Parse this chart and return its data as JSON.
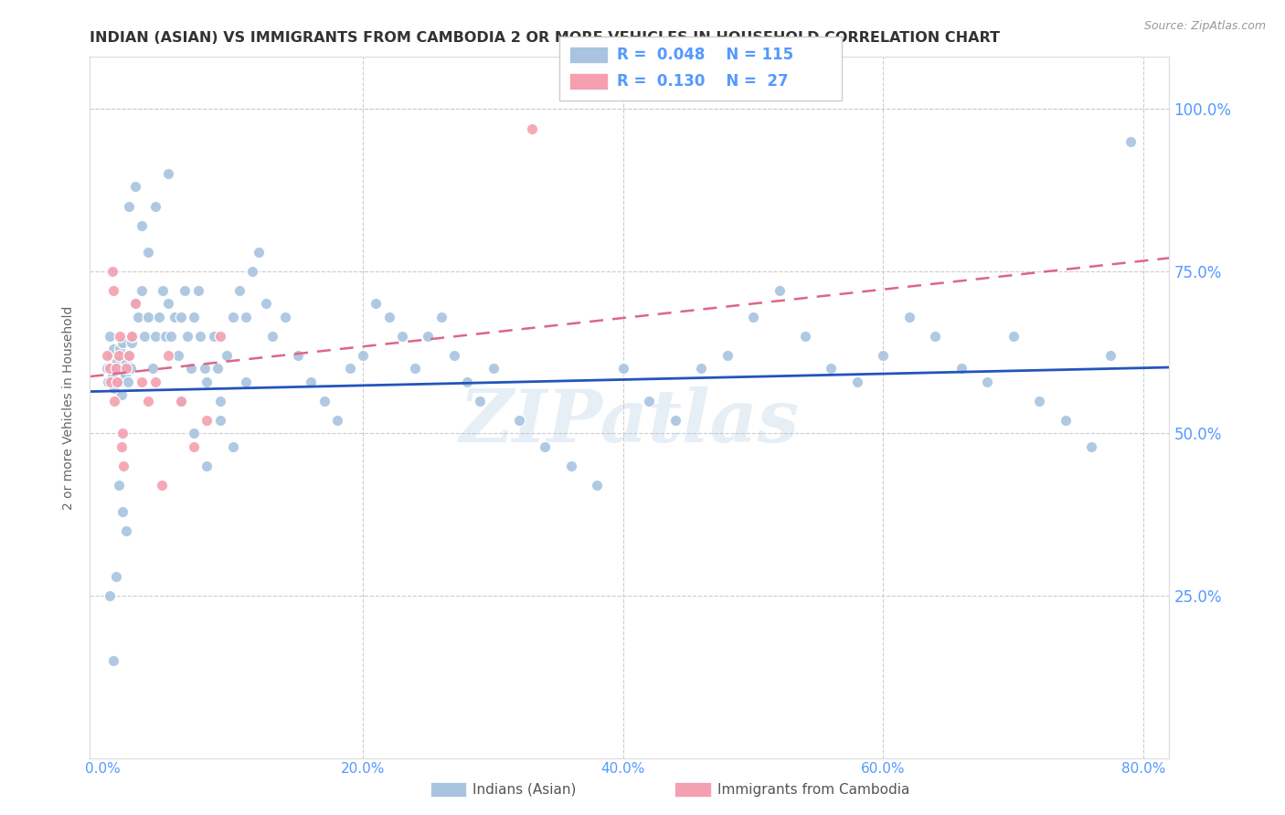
{
  "title": "INDIAN (ASIAN) VS IMMIGRANTS FROM CAMBODIA 2 OR MORE VEHICLES IN HOUSEHOLD CORRELATION CHART",
  "source": "Source: ZipAtlas.com",
  "ylabel": "2 or more Vehicles in Household",
  "xtick_labels": [
    "0.0%",
    "20.0%",
    "40.0%",
    "60.0%",
    "80.0%"
  ],
  "xtick_values": [
    0.0,
    0.2,
    0.4,
    0.6,
    0.8
  ],
  "legend_R_indian": "0.048",
  "legend_N_indian": "115",
  "legend_R_cambodia": "0.130",
  "legend_N_cambodia": "27",
  "indian_color": "#a8c4e0",
  "cambodia_color": "#f4a0b0",
  "indian_line_color": "#2255bb",
  "cambodia_line_color": "#dd6688",
  "watermark": "ZIPatlas",
  "title_color": "#333333",
  "axis_color": "#5599ff",
  "background_color": "#ffffff",
  "indian_line_intercept": 0.565,
  "indian_line_slope": 0.045,
  "cambodia_line_intercept": 0.59,
  "cambodia_line_slope": 0.22,
  "indian_x": [
    0.003,
    0.004,
    0.005,
    0.006,
    0.007,
    0.008,
    0.009,
    0.01,
    0.011,
    0.012,
    0.013,
    0.014,
    0.015,
    0.016,
    0.017,
    0.018,
    0.019,
    0.02,
    0.021,
    0.022,
    0.023,
    0.025,
    0.027,
    0.03,
    0.032,
    0.035,
    0.038,
    0.04,
    0.043,
    0.046,
    0.048,
    0.05,
    0.052,
    0.055,
    0.058,
    0.06,
    0.063,
    0.065,
    0.068,
    0.07,
    0.073,
    0.075,
    0.078,
    0.08,
    0.085,
    0.088,
    0.09,
    0.095,
    0.1,
    0.105,
    0.11,
    0.115,
    0.12,
    0.125,
    0.13,
    0.14,
    0.15,
    0.16,
    0.17,
    0.18,
    0.19,
    0.2,
    0.21,
    0.22,
    0.23,
    0.24,
    0.25,
    0.26,
    0.27,
    0.28,
    0.29,
    0.3,
    0.32,
    0.34,
    0.36,
    0.38,
    0.4,
    0.42,
    0.44,
    0.46,
    0.48,
    0.5,
    0.52,
    0.54,
    0.56,
    0.58,
    0.6,
    0.62,
    0.64,
    0.66,
    0.68,
    0.7,
    0.72,
    0.74,
    0.76,
    0.775,
    0.79,
    0.005,
    0.008,
    0.01,
    0.012,
    0.015,
    0.018,
    0.02,
    0.025,
    0.03,
    0.035,
    0.04,
    0.05,
    0.06,
    0.07,
    0.08,
    0.09,
    0.1,
    0.11
  ],
  "indian_y": [
    0.6,
    0.58,
    0.65,
    0.62,
    0.59,
    0.63,
    0.57,
    0.6,
    0.61,
    0.58,
    0.63,
    0.56,
    0.64,
    0.6,
    0.59,
    0.61,
    0.58,
    0.62,
    0.6,
    0.64,
    0.65,
    0.7,
    0.68,
    0.72,
    0.65,
    0.68,
    0.6,
    0.65,
    0.68,
    0.72,
    0.65,
    0.7,
    0.65,
    0.68,
    0.62,
    0.68,
    0.72,
    0.65,
    0.6,
    0.68,
    0.72,
    0.65,
    0.6,
    0.58,
    0.65,
    0.6,
    0.55,
    0.62,
    0.68,
    0.72,
    0.68,
    0.75,
    0.78,
    0.7,
    0.65,
    0.68,
    0.62,
    0.58,
    0.55,
    0.52,
    0.6,
    0.62,
    0.7,
    0.68,
    0.65,
    0.6,
    0.65,
    0.68,
    0.62,
    0.58,
    0.55,
    0.6,
    0.52,
    0.48,
    0.45,
    0.42,
    0.6,
    0.55,
    0.52,
    0.6,
    0.62,
    0.68,
    0.72,
    0.65,
    0.6,
    0.58,
    0.62,
    0.68,
    0.65,
    0.6,
    0.58,
    0.65,
    0.55,
    0.52,
    0.48,
    0.62,
    0.95,
    0.25,
    0.15,
    0.28,
    0.42,
    0.38,
    0.35,
    0.85,
    0.88,
    0.82,
    0.78,
    0.85,
    0.9,
    0.55,
    0.5,
    0.45,
    0.52,
    0.48,
    0.58
  ],
  "cambodia_x": [
    0.003,
    0.005,
    0.006,
    0.007,
    0.008,
    0.009,
    0.01,
    0.011,
    0.012,
    0.013,
    0.014,
    0.015,
    0.016,
    0.018,
    0.02,
    0.022,
    0.025,
    0.03,
    0.035,
    0.04,
    0.045,
    0.05,
    0.06,
    0.07,
    0.08,
    0.09,
    0.33
  ],
  "cambodia_y": [
    0.62,
    0.6,
    0.58,
    0.75,
    0.72,
    0.55,
    0.6,
    0.58,
    0.62,
    0.65,
    0.48,
    0.5,
    0.45,
    0.6,
    0.62,
    0.65,
    0.7,
    0.58,
    0.55,
    0.58,
    0.42,
    0.62,
    0.55,
    0.48,
    0.52,
    0.65,
    0.97
  ]
}
